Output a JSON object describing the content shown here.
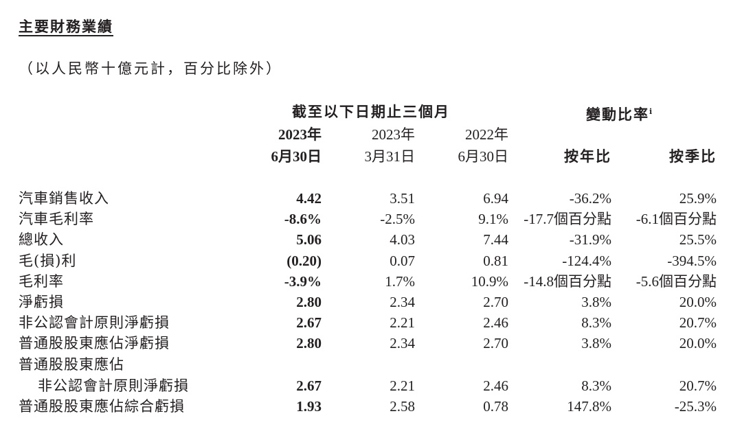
{
  "title": "主要財務業績",
  "subtitle": "（以人民幣十億元計，百分比除外）",
  "header": {
    "period_group": "截至以下日期止三個月",
    "change_group": "變動比率",
    "change_note": "i",
    "cols": [
      {
        "year": "2023年",
        "date": "6月30日"
      },
      {
        "year": "2023年",
        "date": "3月31日"
      },
      {
        "year": "2022年",
        "date": "6月30日"
      }
    ],
    "yoy": "按年比",
    "qoq": "按季比"
  },
  "rows": [
    {
      "label": "汽車銷售收入",
      "v": [
        "4.42",
        "3.51",
        "6.94",
        "-36.2%",
        "25.9%"
      ]
    },
    {
      "label": "汽車毛利率",
      "v": [
        "-8.6%",
        "-2.5%",
        "9.1%",
        "-17.7個百分點",
        "-6.1個百分點"
      ]
    },
    {
      "label": "總收入",
      "v": [
        "5.06",
        "4.03",
        "7.44",
        "-31.9%",
        "25.5%"
      ]
    },
    {
      "label": "毛(損)利",
      "v": [
        "(0.20)",
        "0.07",
        "0.81",
        "-124.4%",
        "-394.5%"
      ]
    },
    {
      "label": "毛利率",
      "v": [
        "-3.9%",
        "1.7%",
        "10.9%",
        "-14.8個百分點",
        "-5.6個百分點"
      ]
    },
    {
      "label": "淨虧損",
      "v": [
        "2.80",
        "2.34",
        "2.70",
        "3.8%",
        "20.0%"
      ]
    },
    {
      "label": "非公認會計原則淨虧損",
      "v": [
        "2.67",
        "2.21",
        "2.46",
        "8.3%",
        "20.7%"
      ]
    },
    {
      "label": "普通股股東應佔淨虧損",
      "v": [
        "2.80",
        "2.34",
        "2.70",
        "3.8%",
        "20.0%"
      ]
    },
    {
      "label": "普通股股東應佔",
      "v": []
    },
    {
      "label": "非公認會計原則淨虧損",
      "v": [
        "2.67",
        "2.21",
        "2.46",
        "8.3%",
        "20.7%"
      ],
      "indent": true
    },
    {
      "label": "普通股股東應佔綜合虧損",
      "v": [
        "1.93",
        "2.58",
        "0.78",
        "147.8%",
        "-25.3%"
      ]
    }
  ]
}
